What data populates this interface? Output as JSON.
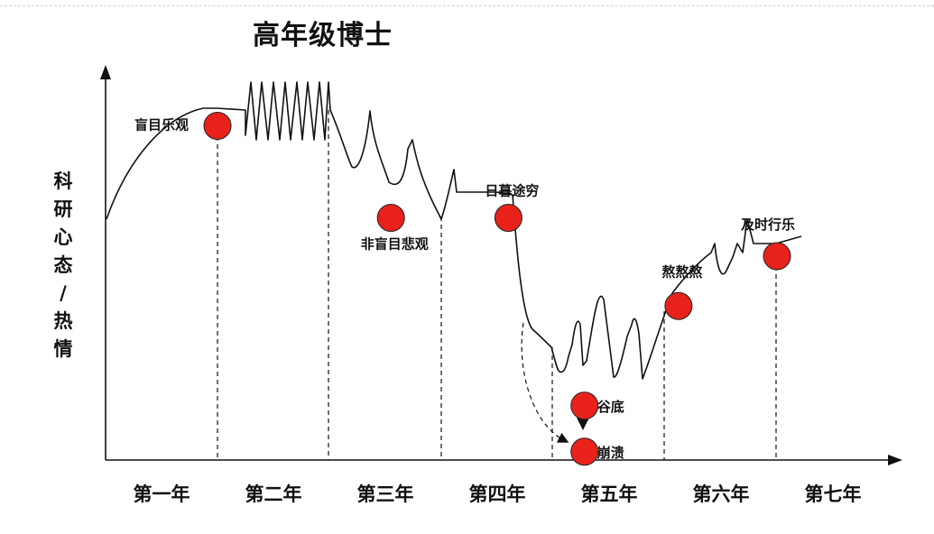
{
  "title": "高年级博士",
  "chart_data": {
    "type": "line",
    "title": "高年级博士",
    "ylabel": "科研心态/热情",
    "xlabel": "",
    "categories": [
      "第一年",
      "第二年",
      "第三年",
      "第四年",
      "第五年",
      "第六年",
      "第七年"
    ],
    "points": [
      {
        "label": "盲目乐观",
        "x": 1.0,
        "y": 0.86
      },
      {
        "label": "非盲目悲观",
        "x": 2.55,
        "y": 0.62
      },
      {
        "label": "日暮途穷",
        "x": 3.6,
        "y": 0.62
      },
      {
        "label": "谷底",
        "x": 4.28,
        "y": 0.13
      },
      {
        "label": "崩溃",
        "x": 4.28,
        "y": 0.01
      },
      {
        "label": "熬熬熬",
        "x": 5.12,
        "y": 0.39
      },
      {
        "label": "及时行乐",
        "x": 6.0,
        "y": 0.52
      }
    ],
    "colors": {
      "point": "#e8221a",
      "line": "#111111"
    },
    "grid": false
  }
}
